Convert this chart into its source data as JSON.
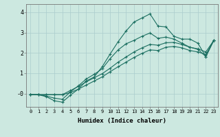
{
  "xlabel": "Humidex (Indice chaleur)",
  "xlim": [
    -0.5,
    23.5
  ],
  "ylim": [
    -0.65,
    4.4
  ],
  "xticks": [
    0,
    1,
    2,
    3,
    4,
    5,
    6,
    7,
    8,
    9,
    10,
    11,
    12,
    13,
    14,
    15,
    16,
    17,
    18,
    19,
    20,
    21,
    22,
    23
  ],
  "yticks": [
    0,
    1,
    2,
    3,
    4
  ],
  "ytick_labels": [
    "-0",
    "1",
    "2",
    "3",
    "4"
  ],
  "bg_color": "#cce8e0",
  "grid_color": "#aacccc",
  "line_color": "#1a6e60",
  "line1_y": [
    -0.05,
    -0.05,
    -0.15,
    -0.35,
    -0.42,
    -0.08,
    0.22,
    0.62,
    0.82,
    1.32,
    1.95,
    2.55,
    3.08,
    3.52,
    3.72,
    3.92,
    3.32,
    3.28,
    2.82,
    2.68,
    2.68,
    2.48,
    1.82,
    2.62
  ],
  "line2_y": [
    -0.05,
    -0.05,
    -0.12,
    -0.22,
    -0.28,
    0.08,
    0.38,
    0.72,
    0.95,
    1.22,
    1.72,
    2.15,
    2.45,
    2.62,
    2.82,
    2.98,
    2.72,
    2.78,
    2.68,
    2.48,
    2.28,
    2.18,
    1.82,
    2.62
  ],
  "line3_y": [
    -0.05,
    -0.05,
    -0.05,
    -0.05,
    -0.05,
    0.15,
    0.35,
    0.58,
    0.78,
    0.98,
    1.25,
    1.55,
    1.8,
    2.05,
    2.25,
    2.42,
    2.38,
    2.5,
    2.52,
    2.42,
    2.28,
    2.2,
    2.05,
    2.62
  ],
  "line4_y": [
    -0.05,
    -0.05,
    -0.05,
    -0.05,
    -0.05,
    0.05,
    0.22,
    0.42,
    0.62,
    0.82,
    1.08,
    1.32,
    1.55,
    1.78,
    1.98,
    2.15,
    2.12,
    2.28,
    2.32,
    2.25,
    2.12,
    2.05,
    1.92,
    2.62
  ]
}
